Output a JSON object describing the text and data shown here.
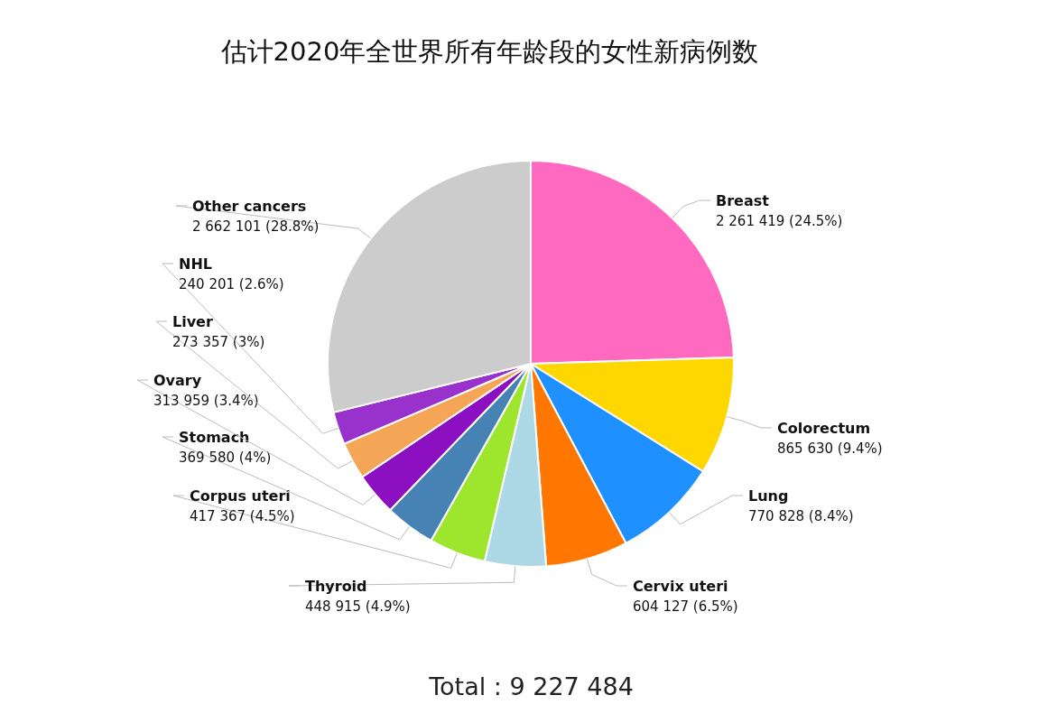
{
  "chart_data": {
    "type": "pie",
    "title": "估计2020年全世界所有年龄段的女性新病例数",
    "categories": [
      "Breast",
      "Colorectum",
      "Lung",
      "Cervix uteri",
      "Thyroid",
      "Corpus uteri",
      "Stomach",
      "Ovary",
      "Liver",
      "NHL",
      "Other cancers"
    ],
    "values": [
      2261419,
      865630,
      770828,
      604127,
      448915,
      417367,
      369580,
      313959,
      273357,
      240201,
      2662101
    ],
    "value_labels": [
      "2 261 419 (24.5%)",
      "865 630 (9.4%)",
      "770 828 (8.4%)",
      "604 127 (6.5%)",
      "448 915 (4.9%)",
      "417 367 (4.5%)",
      "369 580 (4%)",
      "313 959 (3.4%)",
      "273 357 (3%)",
      "240 201 (2.6%)",
      "2 662 101 (28.8%)"
    ],
    "colors": [
      "#ff69c0",
      "#ffd700",
      "#1e90ff",
      "#ff7700",
      "#add8e6",
      "#9ee62e",
      "#4682b4",
      "#8b0fc0",
      "#f4a555",
      "#9932cc",
      "#cccccc"
    ],
    "annotations": [
      "Total : 9 227 484"
    ],
    "legend": false
  }
}
